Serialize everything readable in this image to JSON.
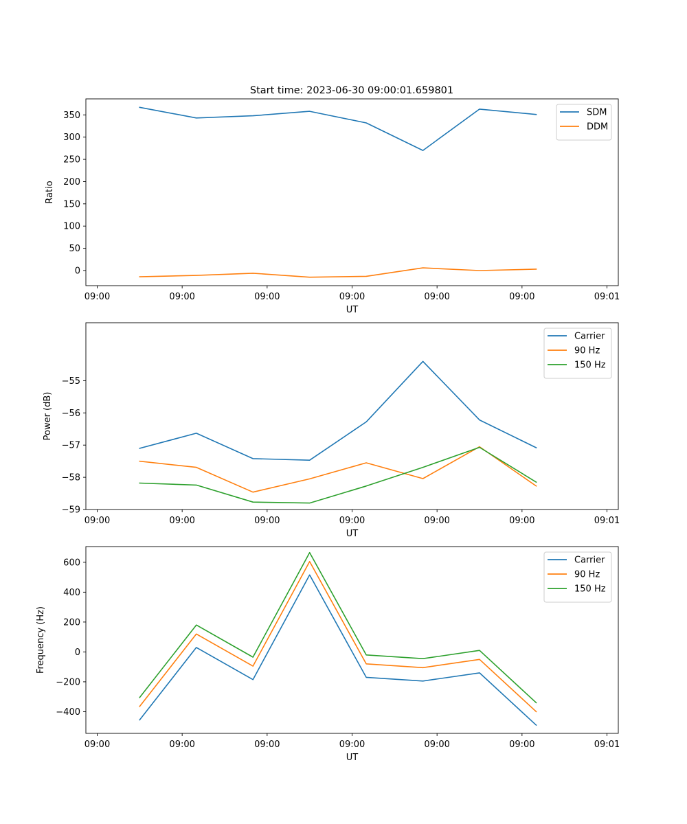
{
  "figure_title": "Start time: 2023-06-30 09:00:01.659801",
  "colors": {
    "blue": "#1f77b4",
    "orange": "#ff7f0e",
    "green": "#2ca02c"
  },
  "chart_data": [
    {
      "type": "line",
      "title": "Start time: 2023-06-30 09:00:01.659801",
      "xlabel": "UT",
      "ylabel": "Ratio",
      "x": [
        3,
        5,
        7,
        9,
        11,
        13,
        15,
        17
      ],
      "x_tick_values": [
        1.5,
        4.5,
        7.5,
        10.5,
        13.5,
        16.5,
        19.5
      ],
      "x_tick_labels": [
        "09:00",
        "09:00",
        "09:00",
        "09:00",
        "09:00",
        "09:00",
        "09:01"
      ],
      "xlim": [
        1.1,
        19.9
      ],
      "ylim": [
        -34,
        386
      ],
      "y_ticks": [
        0,
        50,
        100,
        150,
        200,
        250,
        300,
        350
      ],
      "legend_position": "top-right",
      "grid": false,
      "series": [
        {
          "name": "SDM",
          "color": "#1f77b4",
          "values": [
            367,
            343,
            348,
            358,
            332,
            270,
            363,
            351
          ]
        },
        {
          "name": "DDM",
          "color": "#ff7f0e",
          "values": [
            -14,
            -11,
            -6,
            -15,
            -13,
            6,
            0,
            3
          ]
        }
      ]
    },
    {
      "type": "line",
      "xlabel": "UT",
      "ylabel": "Power (dB)",
      "x": [
        3,
        5,
        7,
        9,
        11,
        13,
        15,
        17
      ],
      "x_tick_values": [
        1.5,
        4.5,
        7.5,
        10.5,
        13.5,
        16.5,
        19.5
      ],
      "x_tick_labels": [
        "09:00",
        "09:00",
        "09:00",
        "09:00",
        "09:00",
        "09:00",
        "09:01"
      ],
      "xlim": [
        1.1,
        19.9
      ],
      "ylim": [
        -59.0,
        -53.2
      ],
      "y_ticks": [
        -59,
        -58,
        -57,
        -56,
        -55
      ],
      "legend_position": "top-right",
      "grid": false,
      "series": [
        {
          "name": "Carrier",
          "color": "#1f77b4",
          "values": [
            -57.1,
            -56.63,
            -57.42,
            -57.47,
            -56.28,
            -54.4,
            -56.22,
            -57.08
          ]
        },
        {
          "name": "90 Hz",
          "color": "#ff7f0e",
          "values": [
            -57.5,
            -57.69,
            -58.46,
            -58.05,
            -57.55,
            -58.04,
            -57.05,
            -58.27
          ]
        },
        {
          "name": "150 Hz",
          "color": "#2ca02c",
          "values": [
            -58.18,
            -58.24,
            -58.77,
            -58.8,
            -58.27,
            -57.69,
            -57.07,
            -58.15
          ]
        }
      ]
    },
    {
      "type": "line",
      "xlabel": "UT",
      "ylabel": "Frequency (Hz)",
      "x": [
        3,
        5,
        7,
        9,
        11,
        13,
        15,
        17
      ],
      "x_tick_values": [
        1.5,
        4.5,
        7.5,
        10.5,
        13.5,
        16.5,
        19.5
      ],
      "x_tick_labels": [
        "09:00",
        "09:00",
        "09:00",
        "09:00",
        "09:00",
        "09:00",
        "09:01"
      ],
      "xlim": [
        1.1,
        19.9
      ],
      "ylim": [
        -545,
        705
      ],
      "y_ticks": [
        -400,
        -200,
        0,
        200,
        400,
        600
      ],
      "legend_position": "top-right",
      "grid": false,
      "series": [
        {
          "name": "Carrier",
          "color": "#1f77b4",
          "values": [
            -455,
            30,
            -185,
            515,
            -170,
            -195,
            -140,
            -490
          ]
        },
        {
          "name": "90 Hz",
          "color": "#ff7f0e",
          "values": [
            -365,
            120,
            -95,
            605,
            -80,
            -105,
            -50,
            -400
          ]
        },
        {
          "name": "150 Hz",
          "color": "#2ca02c",
          "values": [
            -305,
            180,
            -35,
            665,
            -20,
            -45,
            10,
            -340
          ]
        }
      ]
    }
  ]
}
